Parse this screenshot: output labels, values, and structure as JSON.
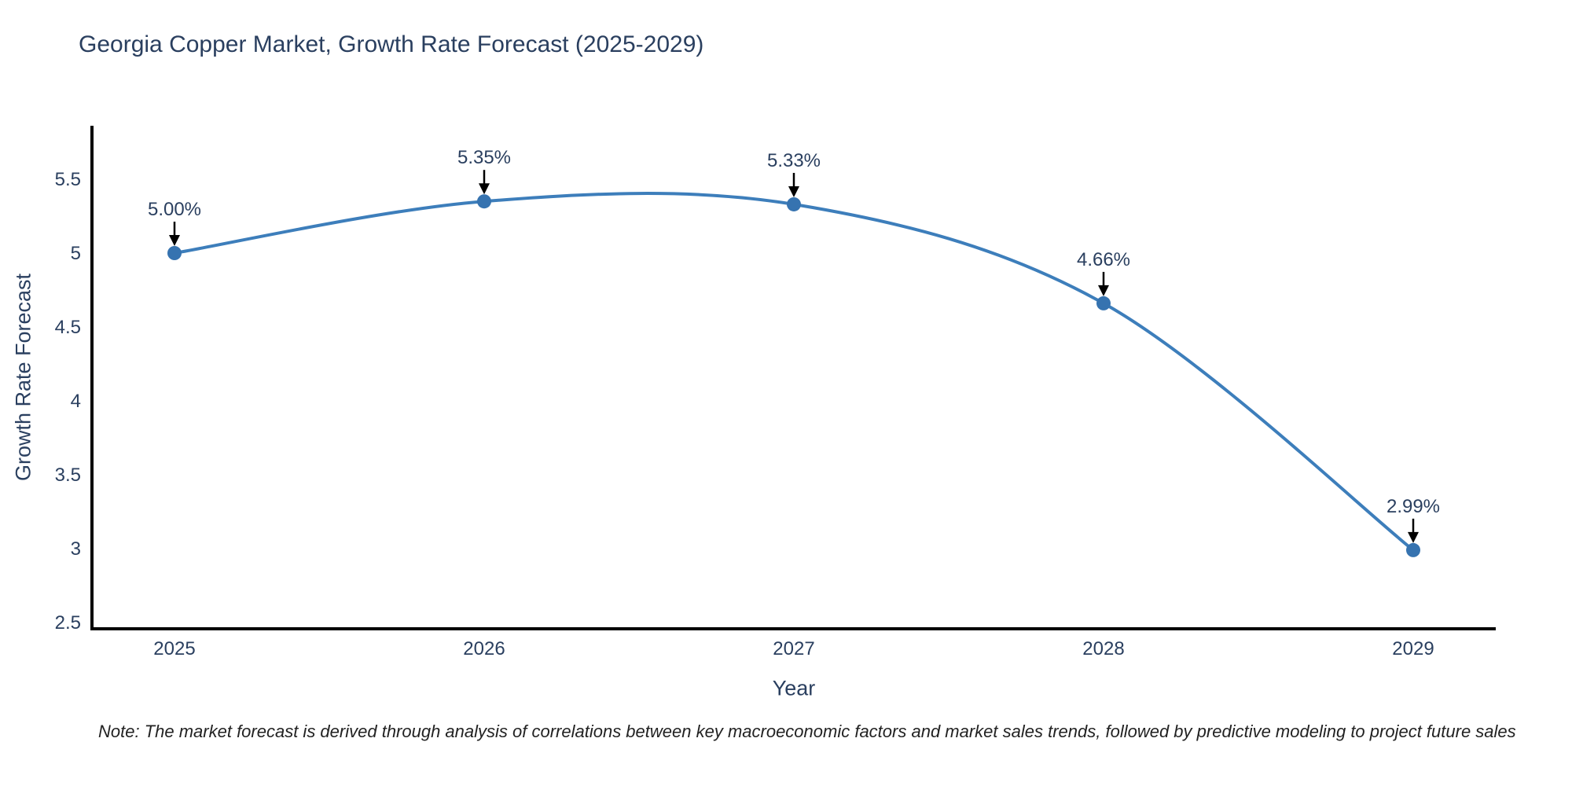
{
  "page": {
    "background": "#ffffff"
  },
  "chart_data": {
    "type": "line",
    "title": "Georgia Copper Market, Growth Rate Forecast (2025-2029)",
    "xlabel": "Year",
    "ylabel": "Growth Rate Forecast",
    "categories": [
      "2025",
      "2026",
      "2027",
      "2028",
      "2029"
    ],
    "series": [
      {
        "name": "Growth Rate Forecast",
        "values": [
          5.0,
          5.35,
          5.33,
          4.66,
          2.99
        ]
      }
    ],
    "point_labels": [
      "5.00%",
      "5.35%",
      "5.33%",
      "4.66%",
      "2.99%"
    ],
    "yticks": [
      2.5,
      3,
      3.5,
      4,
      4.5,
      5,
      5.5
    ],
    "ytick_labels": [
      "2.5",
      "3",
      "3.5",
      "4",
      "4.5",
      "5",
      "5.5"
    ],
    "ylim": [
      2.46,
      5.85
    ],
    "line_shape": "spline",
    "grid": false,
    "legend": false,
    "annotations_arrow": "down-to-point",
    "colors": {
      "line": "#3d7ebb",
      "marker": "#3673b0",
      "axis": "#000000",
      "chart_text": "#2a3f5f",
      "arrow": "#000000",
      "note_text": "#222222"
    },
    "note": "Note: The market forecast is derived through analysis of correlations between key macroeconomic factors and market sales trends, followed by predictive modeling to project future sales"
  }
}
